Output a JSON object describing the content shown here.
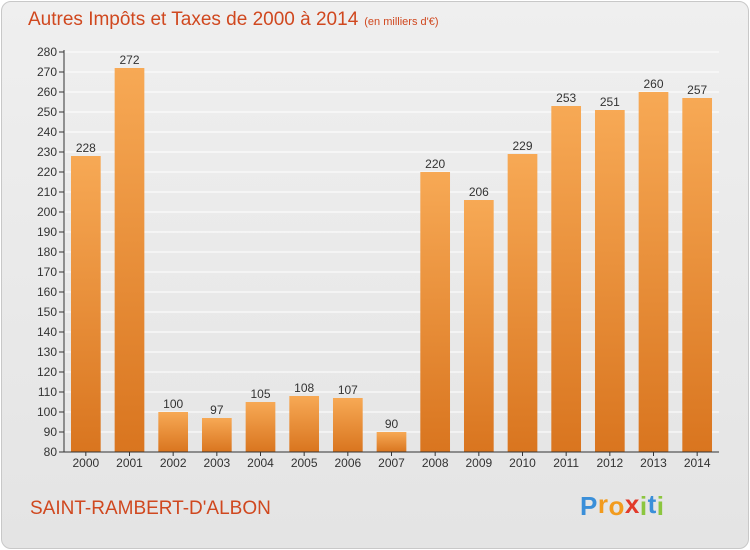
{
  "title": "Autres Impôts et Taxes de 2000 à 2014",
  "subtitle": "(en milliers d'€)",
  "commune": "SAINT-RAMBERT-D'ALBON",
  "logo": {
    "letters": [
      "P",
      "r",
      "o",
      "x",
      "i",
      "t",
      "i"
    ],
    "colors": [
      "#3a8fd9",
      "#f29b1e",
      "#f29b1e",
      "#e23a2a",
      "#8cc63f",
      "#3a8fd9",
      "#8cc63f"
    ]
  },
  "colors": {
    "bar_top": "#f7a955",
    "bar_bottom": "#d9751f",
    "text": "#d0481f",
    "axis": "#333333",
    "grid": "#ffffff"
  },
  "chart_data": {
    "type": "bar",
    "categories": [
      "2000",
      "2001",
      "2002",
      "2003",
      "2004",
      "2005",
      "2006",
      "2007",
      "2008",
      "2009",
      "2010",
      "2011",
      "2012",
      "2013",
      "2014"
    ],
    "values": [
      228,
      272,
      100,
      97,
      105,
      108,
      107,
      90,
      220,
      206,
      229,
      253,
      251,
      260,
      257
    ],
    "title": "Autres Impôts et Taxes de 2000 à 2014",
    "subtitle": "(en milliers d'€)",
    "xlabel": "",
    "ylabel": "",
    "ylim": [
      80,
      280
    ],
    "ytick_step": 10,
    "grid": true,
    "data_labels": true
  }
}
